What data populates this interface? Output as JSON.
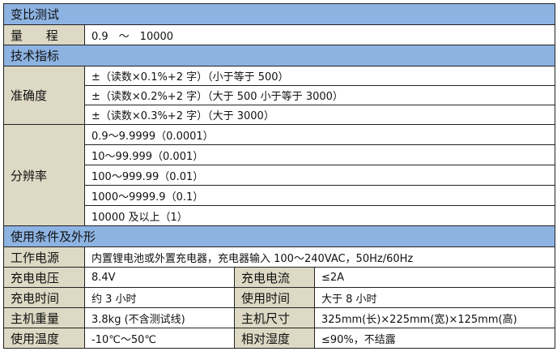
{
  "sections": {
    "ratio_test": "变比测试",
    "tech_specs": "技术指标",
    "conditions": "使用条件及外形"
  },
  "range": {
    "label": "量 程",
    "value": "0.9　～　10000"
  },
  "accuracy": {
    "label": "准确度",
    "items": [
      "±（读数×0.1%+2 字）（小于等于 500）",
      "±（读数×0.2%+2 字）（大于 500 小于等于 3000）",
      "±（读数×0.3%+2 字）（大于 3000）"
    ]
  },
  "resolution": {
    "label": "分辨率",
    "items": [
      "0.9～9.9999（0.0001）",
      "10～99.999（0.001）",
      "100～999.99（0.01）",
      "1000～9999.9（0.1）",
      "10000 及以上（1）"
    ]
  },
  "power": {
    "label": "工作电源",
    "value": "内置锂电池或外置充电器，充电器输入 100～240VAC，50Hz/60Hz"
  },
  "rows": [
    {
      "l1": "充电电压",
      "v1": "8.4V",
      "l2": "充电电流",
      "v2": "≤2A"
    },
    {
      "l1": "充电时间",
      "v1": "约 3 小时",
      "l2": "使用时间",
      "v2": "大于 8 小时"
    },
    {
      "l1": "主机重量",
      "v1": "3.8kg (不含测试线)",
      "l2": "主机尺寸",
      "v2": "325mm(长)×225mm(宽)×125mm(高)"
    },
    {
      "l1": "使用温度",
      "v1": "-10℃～50℃",
      "l2": "相对湿度",
      "v2": "≤90%，不结露"
    }
  ]
}
